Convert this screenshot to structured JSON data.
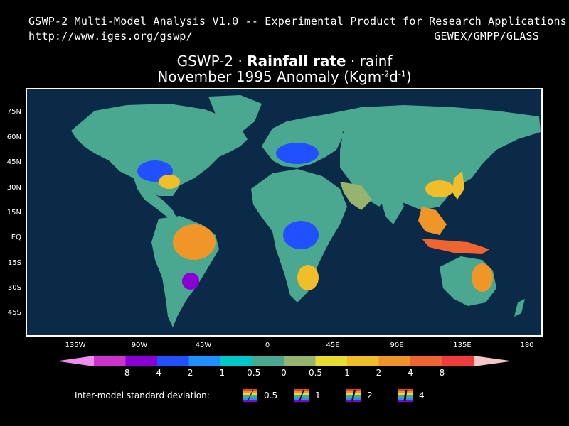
{
  "header": {
    "line1": "GSWP-2 Multi-Model Analysis V1.0 -- Experimental Product for Research Applications",
    "url": "http://www.iges.org/gswp/",
    "org": "GEWEX/GMPP/GLASS"
  },
  "title": {
    "prefix": "GSWP-2 · ",
    "variable": "Rainfall rate",
    "suffix": " · rainf",
    "line2_text": "November 1995 Anomaly (Kgm",
    "unit_sup1": "-2",
    "unit_mid": "d",
    "unit_sup2": "-1",
    "unit_close": ")"
  },
  "axes": {
    "lat_labels": [
      "75N",
      "60N",
      "45N",
      "30N",
      "15N",
      "EQ",
      "15S",
      "30S",
      "45S"
    ],
    "lon_labels": [
      "135W",
      "90W",
      "45W",
      "0",
      "45E",
      "90E",
      "135E",
      "180"
    ]
  },
  "colorbar": {
    "colors": [
      "#cc33cc",
      "#8a00d4",
      "#2050ff",
      "#1e90ff",
      "#00c8c8",
      "#4aa890",
      "#96b46e",
      "#e6dc32",
      "#f0be28",
      "#f09628",
      "#f06432",
      "#f03c3c"
    ],
    "left_tip_color": "#f08cf0",
    "right_tip_color": "#f5c8c8",
    "labels": [
      "-8",
      "-4",
      "-2",
      "-1",
      "-0.5",
      "0",
      "0.5",
      "1",
      "2",
      "4",
      "8"
    ]
  },
  "sd_legend": {
    "label": "Inter-model standard deviation:",
    "values": [
      "0.5",
      "1",
      "2",
      "4"
    ]
  },
  "map": {
    "ocean_color": "#0a2a47",
    "land_color": "#4aa890"
  }
}
